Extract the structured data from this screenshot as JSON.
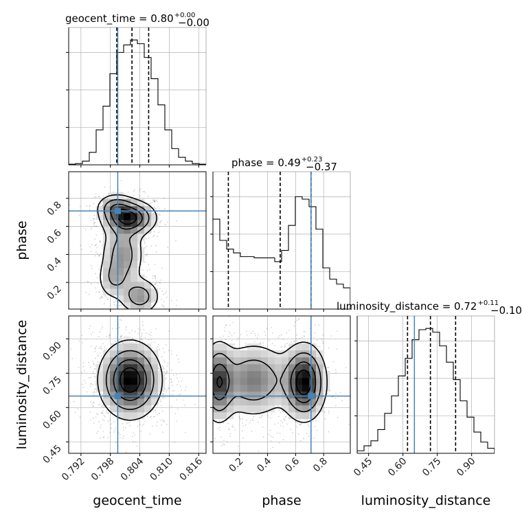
{
  "chart_data": {
    "type": "corner",
    "parameters": [
      "geocent_time",
      "phase",
      "luminosity_distance"
    ],
    "truths": {
      "geocent_time": 0.7995,
      "phase": 0.71,
      "luminosity_distance": 0.65
    },
    "titles": [
      {
        "param": "geocent_time",
        "label": "geocent_time = 0.80",
        "plus": "+0.00",
        "minus": "−0.00"
      },
      {
        "param": "phase",
        "label": "phase = 0.49",
        "plus": "+0.23",
        "minus": "−0.37"
      },
      {
        "param": "luminosity_distance",
        "label": "luminosity_distance = 0.72",
        "plus": "+0.11",
        "minus": "−0.10"
      }
    ],
    "axis_labels": {
      "geocent_time": "geocent_time",
      "phase": "phase",
      "luminosity_distance": "luminosity_distance"
    },
    "ticks": {
      "geocent_time": [
        "0.792",
        "0.798",
        "0.804",
        "0.810",
        "0.816"
      ],
      "phase": [
        "0.2",
        "0.4",
        "0.6",
        "0.8"
      ],
      "luminosity_distance": [
        "0.45",
        "0.60",
        "0.75",
        "0.90"
      ]
    },
    "tick_values": {
      "geocent_time": [
        0.792,
        0.798,
        0.804,
        0.81,
        0.816
      ],
      "phase": [
        0.2,
        0.4,
        0.6,
        0.8
      ],
      "luminosity_distance": [
        0.45,
        0.6,
        0.75,
        0.9
      ]
    },
    "ranges": {
      "geocent_time": [
        0.7895,
        0.8175
      ],
      "phase": [
        0.01,
        0.99
      ],
      "luminosity_distance": [
        0.4,
        1.0
      ]
    },
    "quantiles": {
      "geocent_time": [
        0.7993,
        0.8024,
        0.8058
      ],
      "phase": [
        0.12,
        0.49,
        0.71
      ],
      "luminosity_distance": [
        0.62,
        0.72,
        0.83
      ]
    },
    "histograms": {
      "geocent_time": {
        "edges": [
          0.7895,
          0.7909,
          0.7923,
          0.7937,
          0.7951,
          0.7965,
          0.7979,
          0.7993,
          0.8007,
          0.8021,
          0.8035,
          0.8049,
          0.8063,
          0.8077,
          0.8091,
          0.8105,
          0.8119,
          0.8133,
          0.8147,
          0.8161,
          0.8175
        ],
        "counts": [
          0.005,
          0.01,
          0.03,
          0.1,
          0.28,
          0.47,
          0.73,
          0.9,
          0.96,
          1.0,
          0.97,
          0.86,
          0.69,
          0.48,
          0.28,
          0.13,
          0.06,
          0.03,
          0.01,
          0.005
        ]
      },
      "phase": {
        "edges": [
          0.01,
          0.059,
          0.108,
          0.157,
          0.206,
          0.255,
          0.304,
          0.353,
          0.402,
          0.451,
          0.5,
          0.549,
          0.598,
          0.647,
          0.696,
          0.745,
          0.794,
          0.843,
          0.892,
          0.941,
          0.99
        ],
        "counts": [
          0.72,
          0.55,
          0.48,
          0.45,
          0.42,
          0.42,
          0.41,
          0.41,
          0.41,
          0.38,
          0.47,
          0.67,
          0.9,
          0.88,
          0.82,
          0.64,
          0.33,
          0.24,
          0.2,
          0.17
        ]
      },
      "luminosity_distance": {
        "edges": [
          0.4,
          0.43,
          0.46,
          0.49,
          0.52,
          0.55,
          0.58,
          0.61,
          0.64,
          0.67,
          0.7,
          0.73,
          0.76,
          0.79,
          0.82,
          0.85,
          0.88,
          0.91,
          0.94,
          0.97,
          1.0
        ],
        "counts": [
          0.02,
          0.06,
          0.1,
          0.19,
          0.32,
          0.46,
          0.62,
          0.76,
          0.91,
          0.99,
          1.0,
          0.97,
          0.86,
          0.73,
          0.59,
          0.42,
          0.29,
          0.17,
          0.09,
          0.04
        ]
      }
    },
    "hist_ylim": [
      0,
      1.1
    ],
    "grid": true
  }
}
